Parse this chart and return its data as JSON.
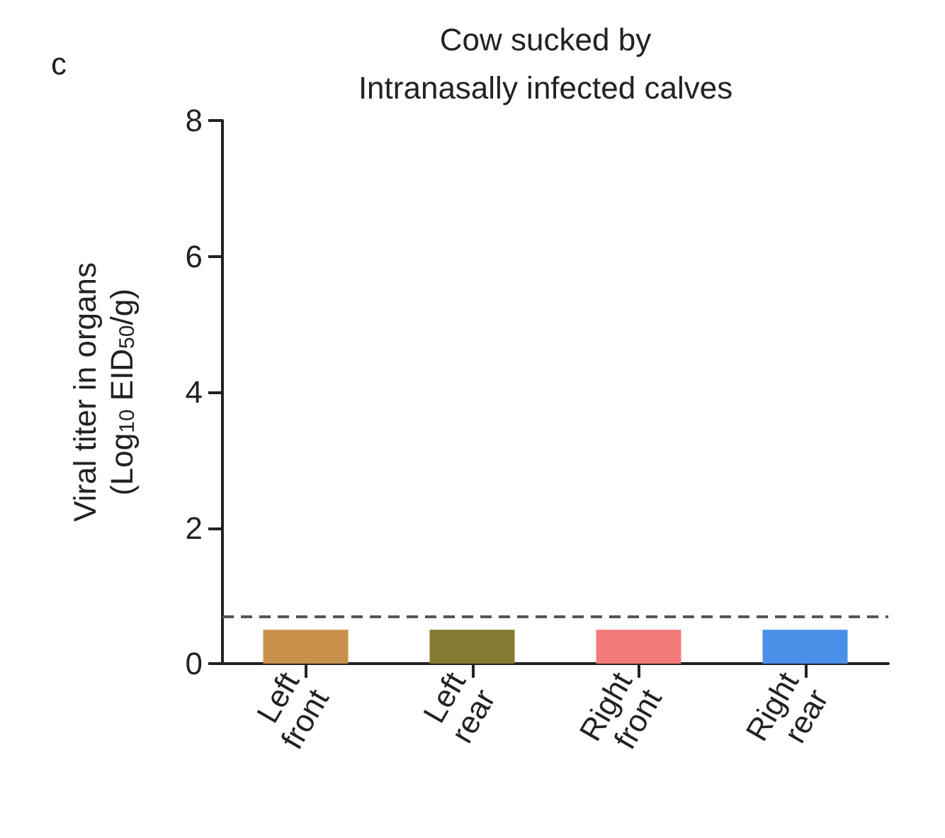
{
  "chart_data": {
    "type": "bar",
    "title": "Cow sucked by\nIntranasally infected calves",
    "ylabel": "Viral titer in organs\n(Log$_{10}$ EID$_{50}$/g)",
    "annotations": [
      "c"
    ],
    "categories": [
      "Left front",
      "Left rear",
      "Right front",
      "Right rear"
    ],
    "values": [
      0.5,
      0.5,
      0.5,
      0.5
    ],
    "colors": [
      "#c8904a",
      "#857a32",
      "#f47a7a",
      "#4a90e8"
    ],
    "ylim": [
      0,
      8
    ],
    "yticks": [
      0,
      2,
      4,
      6,
      8
    ],
    "ref_lines": [
      {
        "axis": "y",
        "value": 0.7,
        "color": "#555555",
        "line_style": "dashed"
      }
    ],
    "grid": false
  }
}
